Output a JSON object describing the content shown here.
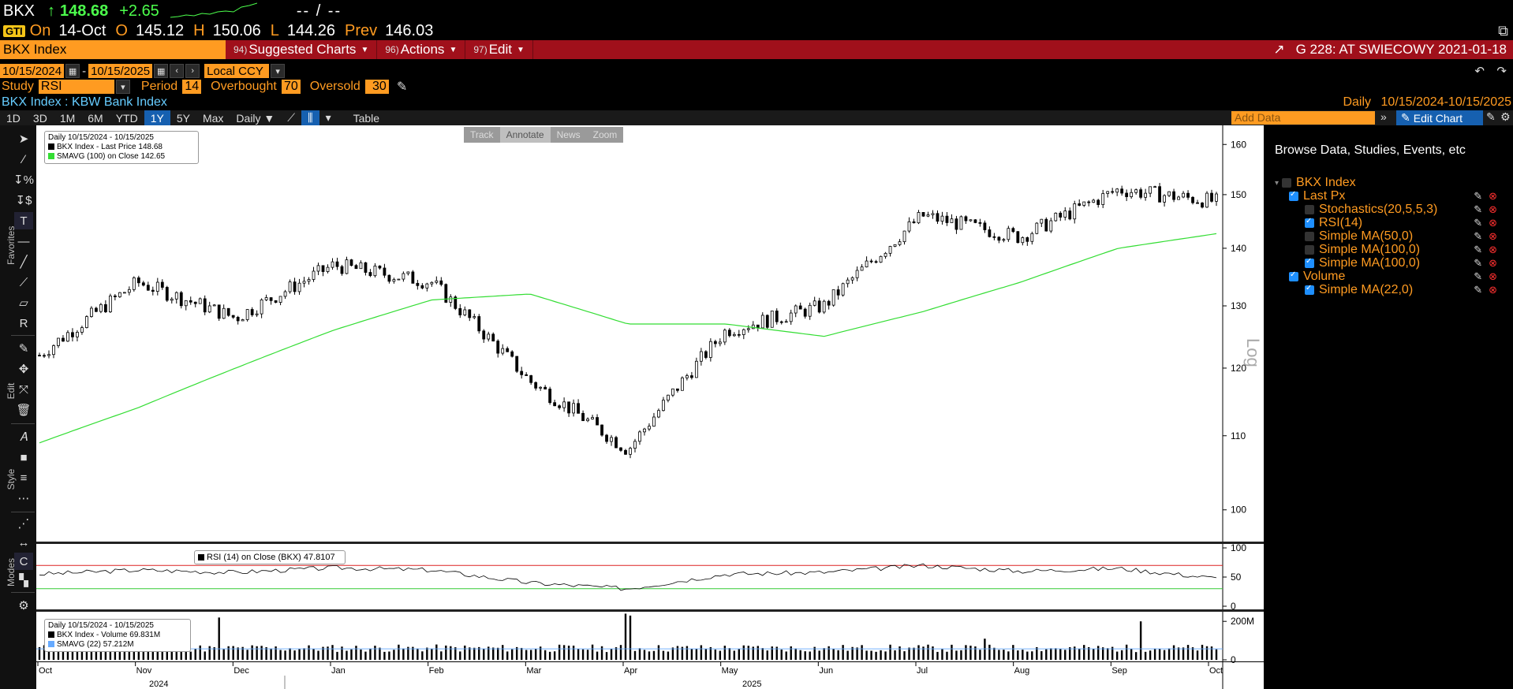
{
  "quote": {
    "ticker": "BKX",
    "arrow": "↑",
    "last": "148.68",
    "change": "+2.65",
    "dashes": "-- / --",
    "on_label": "On",
    "date": "14-Oct",
    "o_label": "O",
    "open": "145.12",
    "h_label": "H",
    "high": "150.06",
    "l_label": "L",
    "low": "144.26",
    "prev_label": "Prev",
    "prev": "146.03",
    "badge": "GTI"
  },
  "menubar": {
    "security": "BKX Index",
    "items": [
      {
        "num": "94)",
        "label": "Suggested Charts"
      },
      {
        "num": "96)",
        "label": "Actions"
      },
      {
        "num": "97)",
        "label": "Edit"
      }
    ],
    "right_title": "G 228: AT SWIECOWY 2021-01-18"
  },
  "inputs": {
    "start_date": "10/15/2024",
    "end_date": "10/15/2025",
    "currency": "Local CCY"
  },
  "study": {
    "study_label": "Study",
    "study_value": "RSI",
    "period_label": "Period",
    "period_value": "14",
    "overbought_label": "Overbought",
    "overbought_value": "70",
    "oversold_label": "Oversold",
    "oversold_value": "30"
  },
  "security_line": {
    "name": "BKX Index : KBW Bank Index",
    "freq": "Daily",
    "range": "10/15/2024-10/15/2025"
  },
  "toolbar": {
    "ranges": [
      "1D",
      "3D",
      "1M",
      "6M",
      "YTD",
      "1Y",
      "5Y",
      "Max"
    ],
    "selected": "1Y",
    "freq": "Daily ▼",
    "table": "Table",
    "add_data_placeholder": "Add Data",
    "edit_chart": "Edit Chart"
  },
  "chart_controls": [
    "Track",
    "Annotate",
    "News",
    "Zoom"
  ],
  "left_labels": [
    "Favorites",
    "Edit",
    "Style",
    "Modes"
  ],
  "legends": {
    "price": {
      "line1": "Daily 10/15/2024 - 10/15/2025",
      "line2": "BKX Index - Last Price  148.68",
      "line3": "SMAVG (100)  on Close  142.65"
    },
    "rsi": {
      "line1": "RSI (14)  on Close (BKX)  47.8107"
    },
    "volume": {
      "line1": "Daily 10/15/2024 - 10/15/2025",
      "line2": "BKX Index - Volume  69.831M",
      "line3": "SMAVG (22)          57.212M"
    }
  },
  "axis": {
    "price_ticks": [
      "160",
      "150",
      "140",
      "130",
      "120",
      "110",
      "100"
    ],
    "log_label": "Log",
    "rsi_ticks": [
      "100",
      "50",
      "0"
    ],
    "vol_ticks": [
      "200M",
      "0"
    ],
    "months": [
      "Oct",
      "Nov",
      "Dec",
      "Jan",
      "Feb",
      "Mar",
      "Apr",
      "May",
      "Jun",
      "Jul",
      "Aug",
      "Sep",
      "Oct"
    ],
    "years": [
      "2024",
      "2025"
    ]
  },
  "right_panel": {
    "title": "Browse Data, Studies, Events, etc",
    "root": "BKX Index",
    "items": [
      {
        "label": "Last Px",
        "checked": true,
        "indent": 0
      },
      {
        "label": "Stochastics(20,5,5,3)",
        "checked": false,
        "indent": 1
      },
      {
        "label": "RSI(14)",
        "checked": true,
        "indent": 1
      },
      {
        "label": "Simple MA(50,0)",
        "checked": false,
        "indent": 1
      },
      {
        "label": "Simple MA(100,0)",
        "checked": false,
        "indent": 1
      },
      {
        "label": "Simple MA(100,0)",
        "checked": true,
        "indent": 1
      },
      {
        "label": "Volume",
        "checked": true,
        "indent": 0
      },
      {
        "label": "Simple MA(22,0)",
        "checked": true,
        "indent": 1
      }
    ]
  },
  "colors": {
    "orange": "#ff9b21",
    "menu_red": "#a0101b",
    "sma": "#33dd33",
    "up": "#4cff4c",
    "select_blue": "#1660b0"
  },
  "chart_data": {
    "type": "line",
    "ylabel": "",
    "xlabel": "",
    "yscale": "log",
    "ylim": [
      96,
      162
    ],
    "categories": [
      "Oct",
      "Nov",
      "Dec",
      "Jan",
      "Feb",
      "Mar",
      "Apr",
      "May",
      "Jun",
      "Jul",
      "Aug",
      "Sep",
      "Oct"
    ],
    "series": [
      {
        "name": "BKX Index - Last Price",
        "values": [
          122,
          134,
          128,
          137,
          134,
          118,
          108,
          126,
          130,
          146,
          142,
          151,
          148.68
        ]
      },
      {
        "name": "SMAVG (100)",
        "values": [
          109,
          114,
          120,
          126,
          131,
          132,
          127,
          127,
          125,
          129,
          134,
          140,
          142.65
        ]
      }
    ],
    "rsi": {
      "name": "RSI (14)",
      "overbought": 70,
      "oversold": 30,
      "last": 47.8107,
      "values": [
        55,
        62,
        58,
        66,
        62,
        40,
        30,
        55,
        58,
        70,
        60,
        65,
        47.8
      ]
    },
    "volume": {
      "name": "BKX Index - Volume",
      "sma_name": "SMAVG (22)",
      "last_millions": 69.831,
      "sma_last_millions": 57.212,
      "ylim_millions": [
        0,
        250
      ]
    }
  }
}
